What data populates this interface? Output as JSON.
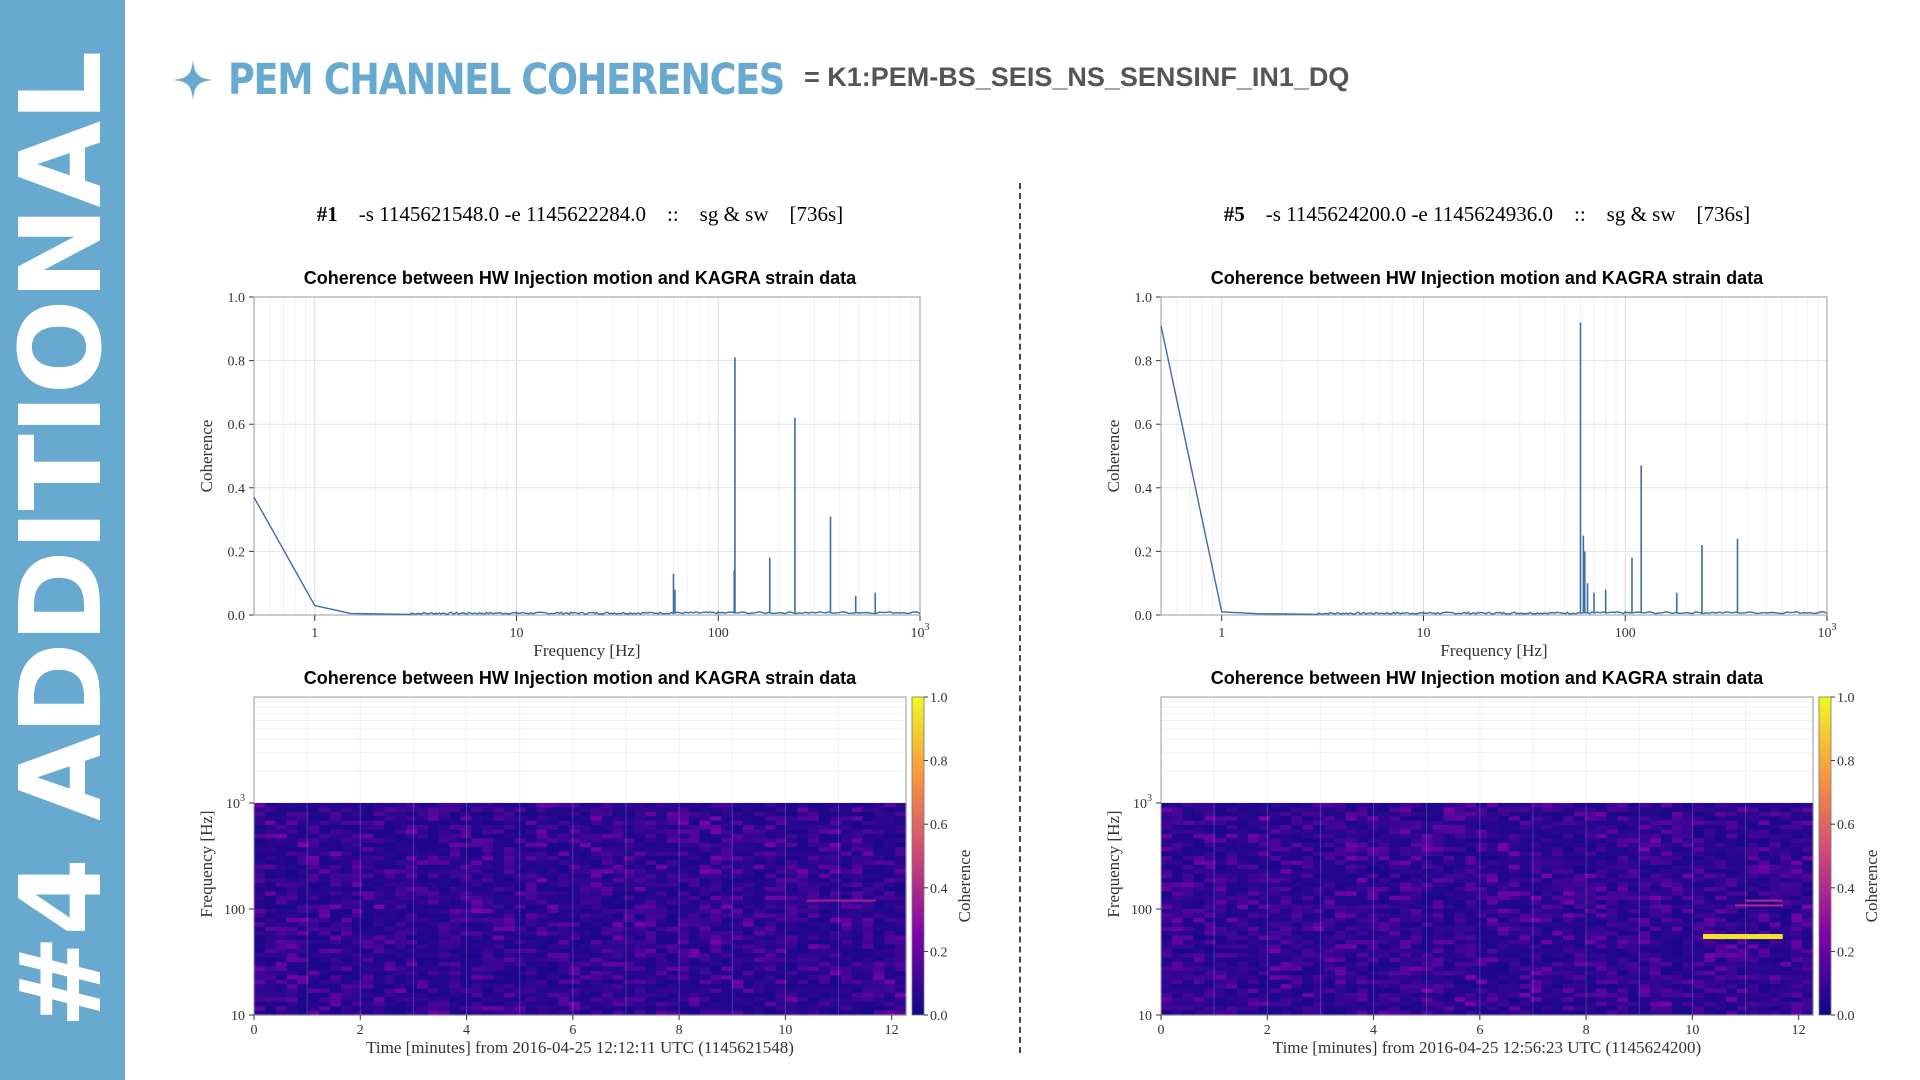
{
  "sidebar": {
    "label": "#4 ADDITIONAL"
  },
  "header": {
    "title": "PEM CHANNEL COHERENCES",
    "channel": "= K1:PEM-BS_SEIS_NS_SENSINF_IN1_DQ"
  },
  "colors": {
    "sidebar": "#67a9cf",
    "accent": "#67a9cf",
    "line": "#3a6ea5"
  },
  "panels": [
    {
      "run": {
        "id": "#1",
        "start": "-s 1145621548.0",
        "end": "-e 1145622284.0",
        "sep": "::",
        "mode": "sg & sw",
        "duration": "[736s]"
      },
      "top_title": "Coherence between HW Injection motion and KAGRA strain data",
      "bottom_title": "Coherence between HW Injection motion and KAGRA strain data",
      "bottom_xlabel": "Time [minutes] from 2016-04-25 12:12:11 UTC (1145621548)"
    },
    {
      "run": {
        "id": "#5",
        "start": "-s 1145624200.0",
        "end": "-e 1145624936.0",
        "sep": "::",
        "mode": "sg & sw",
        "duration": "[736s]"
      },
      "top_title": "Coherence between HW Injection motion and KAGRA strain data",
      "bottom_title": "Coherence between HW Injection motion and KAGRA strain data",
      "bottom_xlabel": "Time [minutes] from 2016-04-25 12:56:23 UTC (1145624200)"
    }
  ],
  "chart_data": [
    {
      "type": "line",
      "title": "Coherence between HW Injection motion and KAGRA strain data",
      "xlabel": "Frequency [Hz]",
      "ylabel": "Coherence",
      "xscale": "log",
      "xlim": [
        0.5,
        1000
      ],
      "ylim": [
        0,
        1.0
      ],
      "xticks": [
        "1",
        "10",
        "100",
        "10³"
      ],
      "yticks": [
        "0.0",
        "0.2",
        "0.4",
        "0.6",
        "0.8",
        "1.0"
      ],
      "grid": true,
      "baseline": [
        [
          0.5,
          0.37
        ],
        [
          1,
          0.03
        ],
        [
          1.5,
          0.005
        ],
        [
          3,
          0.002
        ],
        [
          10,
          0.003
        ],
        [
          30,
          0.003
        ],
        [
          100,
          0.004
        ],
        [
          1000,
          0.005
        ]
      ],
      "peaks": [
        [
          60,
          0.13
        ],
        [
          61,
          0.08
        ],
        [
          120,
          0.14
        ],
        [
          121,
          0.81
        ],
        [
          180,
          0.18
        ],
        [
          240,
          0.62
        ],
        [
          360,
          0.31
        ],
        [
          480,
          0.06
        ],
        [
          600,
          0.07
        ]
      ]
    },
    {
      "type": "heatmap",
      "title": "Coherence between HW Injection motion and KAGRA strain data",
      "xlabel": "Time [minutes] from 2016-04-25 12:12:11 UTC (1145621548)",
      "ylabel": "Frequency [Hz]",
      "yscale": "log",
      "xlim": [
        0,
        12.27
      ],
      "ylim": [
        10,
        10000
      ],
      "xticks": [
        "0",
        "2",
        "4",
        "6",
        "8",
        "10",
        "12"
      ],
      "yticks": [
        "10",
        "100",
        "10³"
      ],
      "colorbar": {
        "label": "Coherence",
        "range": [
          0,
          1.0
        ],
        "ticks": [
          "0.0",
          "0.2",
          "0.4",
          "0.6",
          "0.8",
          "1.0"
        ],
        "colormap": "plasma"
      },
      "data_max_freq": 1000,
      "features": [
        {
          "t": [
            10.4,
            11.7
          ],
          "f": 120,
          "coherence": 0.35
        }
      ]
    },
    {
      "type": "line",
      "title": "Coherence between HW Injection motion and KAGRA strain data",
      "xlabel": "Frequency [Hz]",
      "ylabel": "Coherence",
      "xscale": "log",
      "xlim": [
        0.5,
        1000
      ],
      "ylim": [
        0,
        1.0
      ],
      "xticks": [
        "1",
        "10",
        "100",
        "10³"
      ],
      "yticks": [
        "0.0",
        "0.2",
        "0.4",
        "0.6",
        "0.8",
        "1.0"
      ],
      "grid": true,
      "baseline": [
        [
          0.5,
          0.91
        ],
        [
          1,
          0.01
        ],
        [
          1.5,
          0.004
        ],
        [
          3,
          0.002
        ],
        [
          10,
          0.003
        ],
        [
          30,
          0.003
        ],
        [
          100,
          0.004
        ],
        [
          1000,
          0.005
        ]
      ],
      "peaks": [
        [
          60,
          0.92
        ],
        [
          62,
          0.25
        ],
        [
          63,
          0.2
        ],
        [
          65,
          0.1
        ],
        [
          70,
          0.07
        ],
        [
          80,
          0.08
        ],
        [
          108,
          0.18
        ],
        [
          120,
          0.47
        ],
        [
          180,
          0.07
        ],
        [
          240,
          0.22
        ],
        [
          360,
          0.24
        ]
      ]
    },
    {
      "type": "heatmap",
      "title": "Coherence between HW Injection motion and KAGRA strain data",
      "xlabel": "Time [minutes] from 2016-04-25 12:56:23 UTC (1145624200)",
      "ylabel": "Frequency [Hz]",
      "yscale": "log",
      "xlim": [
        0,
        12.27
      ],
      "ylim": [
        10,
        10000
      ],
      "xticks": [
        "0",
        "2",
        "4",
        "6",
        "8",
        "10",
        "12"
      ],
      "yticks": [
        "10",
        "100",
        "10³"
      ],
      "colorbar": {
        "label": "Coherence",
        "range": [
          0,
          1.0
        ],
        "ticks": [
          "0.0",
          "0.2",
          "0.4",
          "0.6",
          "0.8",
          "1.0"
        ],
        "colormap": "plasma"
      },
      "data_max_freq": 1000,
      "features": [
        {
          "t": [
            10.2,
            11.7
          ],
          "f": 55,
          "coherence": 0.95
        },
        {
          "t": [
            10.8,
            11.7
          ],
          "f": 108,
          "coherence": 0.4
        },
        {
          "t": [
            11.0,
            11.7
          ],
          "f": 120,
          "coherence": 0.4
        }
      ]
    }
  ]
}
